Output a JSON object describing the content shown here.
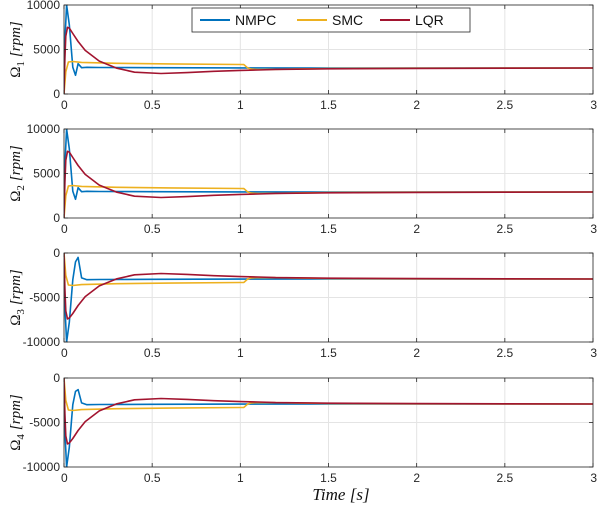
{
  "chart_data": {
    "type": "line",
    "xlabel": "Time [s]",
    "xlim": [
      0,
      3
    ],
    "x_ticks": [
      "0",
      "0.5",
      "1",
      "1.5",
      "2",
      "2.5",
      "3"
    ],
    "grid": true,
    "legend": {
      "placement": "top-center",
      "entries": [
        {
          "name": "NMPC",
          "color": "#0072bd"
        },
        {
          "name": "SMC",
          "color": "#edb120"
        },
        {
          "name": "LQR",
          "color": "#a2142f"
        }
      ]
    },
    "panels": [
      {
        "ylabel_symbol": "Ω",
        "ylabel_sub": "1",
        "ylabel_unit": "[rpm]",
        "ylim": [
          0,
          10000
        ],
        "y_ticks": [
          "0",
          "5000",
          "10000"
        ],
        "series": [
          {
            "name": "NMPC",
            "x": [
              0,
              0.005,
              0.015,
              0.03,
              0.05,
              0.065,
              0.08,
              0.1,
              0.13,
              0.2,
              0.5,
              1.0,
              1.5,
              2.0,
              3.0
            ],
            "y": [
              0,
              6000,
              10000,
              7800,
              3000,
              2100,
              3400,
              2950,
              3000,
              2980,
              2950,
              2930,
              2920,
              2920,
              2920
            ]
          },
          {
            "name": "SMC",
            "x": [
              0,
              0.01,
              0.025,
              0.05,
              0.1,
              0.3,
              0.6,
              1.0,
              1.02,
              1.04,
              1.06,
              1.1,
              1.2,
              1.5,
              2.0,
              3.0
            ],
            "y": [
              0,
              2500,
              3600,
              3650,
              3550,
              3450,
              3380,
              3320,
              3300,
              2950,
              2800,
              2750,
              2780,
              2850,
              2900,
              2920
            ]
          },
          {
            "name": "LQR",
            "x": [
              0,
              0.005,
              0.01,
              0.02,
              0.03,
              0.05,
              0.08,
              0.12,
              0.2,
              0.3,
              0.4,
              0.55,
              0.7,
              0.85,
              1.0,
              1.1,
              1.2,
              1.5,
              2.0,
              2.5,
              3.0
            ],
            "y": [
              0,
              4000,
              6500,
              7500,
              7400,
              6800,
              5900,
              4900,
              3700,
              2900,
              2450,
              2300,
              2400,
              2550,
              2650,
              2700,
              2760,
              2830,
              2880,
              2900,
              2920
            ]
          }
        ]
      },
      {
        "ylabel_symbol": "Ω",
        "ylabel_sub": "2",
        "ylabel_unit": "[rpm]",
        "ylim": [
          0,
          10000
        ],
        "y_ticks": [
          "0",
          "5000",
          "10000"
        ],
        "series": [
          {
            "name": "NMPC",
            "x": [
              0,
              0.005,
              0.015,
              0.03,
              0.05,
              0.065,
              0.08,
              0.1,
              0.13,
              0.2,
              0.5,
              1.0,
              1.5,
              2.0,
              3.0
            ],
            "y": [
              0,
              6000,
              10000,
              7800,
              3000,
              2100,
              3400,
              2950,
              3000,
              2980,
              2950,
              2930,
              2920,
              2920,
              2920
            ]
          },
          {
            "name": "SMC",
            "x": [
              0,
              0.01,
              0.025,
              0.05,
              0.1,
              0.3,
              0.6,
              1.0,
              1.02,
              1.04,
              1.06,
              1.1,
              1.2,
              1.5,
              2.0,
              3.0
            ],
            "y": [
              0,
              2500,
              3600,
              3650,
              3550,
              3450,
              3380,
              3320,
              3300,
              2950,
              2800,
              2750,
              2780,
              2850,
              2900,
              2920
            ]
          },
          {
            "name": "LQR",
            "x": [
              0,
              0.005,
              0.01,
              0.02,
              0.03,
              0.05,
              0.08,
              0.12,
              0.2,
              0.3,
              0.4,
              0.55,
              0.7,
              0.85,
              1.0,
              1.1,
              1.2,
              1.5,
              2.0,
              2.5,
              3.0
            ],
            "y": [
              0,
              4000,
              6500,
              7500,
              7400,
              6800,
              5900,
              4900,
              3700,
              2900,
              2450,
              2300,
              2400,
              2550,
              2650,
              2700,
              2760,
              2830,
              2880,
              2900,
              2920
            ]
          }
        ]
      },
      {
        "ylabel_symbol": "Ω",
        "ylabel_sub": "3",
        "ylabel_unit": "[rpm]",
        "ylim": [
          -10000,
          0
        ],
        "y_ticks": [
          "-10000",
          "-5000",
          "0"
        ],
        "series": [
          {
            "name": "NMPC",
            "x": [
              0,
              0.005,
              0.015,
              0.03,
              0.05,
              0.065,
              0.08,
              0.1,
              0.13,
              0.2,
              0.5,
              1.0,
              1.5,
              2.0,
              3.0
            ],
            "y": [
              0,
              -6000,
              -10000,
              -7800,
              -3000,
              -1000,
              -500,
              -2800,
              -3000,
              -2980,
              -2950,
              -2930,
              -2920,
              -2920,
              -2920
            ]
          },
          {
            "name": "SMC",
            "x": [
              0,
              0.01,
              0.025,
              0.05,
              0.1,
              0.3,
              0.6,
              1.0,
              1.02,
              1.04,
              1.06,
              1.1,
              1.2,
              1.5,
              2.0,
              3.0
            ],
            "y": [
              0,
              -2500,
              -3600,
              -3650,
              -3550,
              -3450,
              -3380,
              -3320,
              -3300,
              -2950,
              -2800,
              -2750,
              -2780,
              -2850,
              -2900,
              -2920
            ]
          },
          {
            "name": "LQR",
            "x": [
              0,
              0.005,
              0.01,
              0.02,
              0.03,
              0.05,
              0.08,
              0.12,
              0.2,
              0.3,
              0.4,
              0.55,
              0.7,
              0.85,
              1.0,
              1.1,
              1.2,
              1.5,
              2.0,
              2.5,
              3.0
            ],
            "y": [
              0,
              -4000,
              -6500,
              -7400,
              -7300,
              -6800,
              -5900,
              -4900,
              -3700,
              -2900,
              -2450,
              -2300,
              -2400,
              -2550,
              -2650,
              -2700,
              -2760,
              -2830,
              -2880,
              -2900,
              -2920
            ]
          }
        ]
      },
      {
        "ylabel_symbol": "Ω",
        "ylabel_sub": "4",
        "ylabel_unit": "[rpm]",
        "ylim": [
          -10000,
          0
        ],
        "y_ticks": [
          "-10000",
          "-5000",
          "0"
        ],
        "series": [
          {
            "name": "NMPC",
            "x": [
              0,
              0.005,
              0.015,
              0.03,
              0.05,
              0.065,
              0.08,
              0.1,
              0.13,
              0.2,
              0.5,
              1.0,
              1.5,
              2.0,
              3.0
            ],
            "y": [
              0,
              -6000,
              -10000,
              -7800,
              -3000,
              -1500,
              -1300,
              -2800,
              -3000,
              -2980,
              -2950,
              -2930,
              -2920,
              -2920,
              -2920
            ]
          },
          {
            "name": "SMC",
            "x": [
              0,
              0.01,
              0.025,
              0.05,
              0.1,
              0.3,
              0.6,
              1.0,
              1.02,
              1.04,
              1.06,
              1.1,
              1.2,
              1.5,
              2.0,
              3.0
            ],
            "y": [
              0,
              -2500,
              -3600,
              -3650,
              -3550,
              -3450,
              -3380,
              -3320,
              -3300,
              -2950,
              -2800,
              -2750,
              -2780,
              -2850,
              -2900,
              -2920
            ]
          },
          {
            "name": "LQR",
            "x": [
              0,
              0.005,
              0.01,
              0.02,
              0.03,
              0.05,
              0.08,
              0.12,
              0.2,
              0.3,
              0.4,
              0.55,
              0.7,
              0.85,
              1.0,
              1.1,
              1.2,
              1.5,
              2.0,
              2.5,
              3.0
            ],
            "y": [
              0,
              -4000,
              -6500,
              -7400,
              -7300,
              -6800,
              -5900,
              -4900,
              -3700,
              -2900,
              -2450,
              -2300,
              -2400,
              -2550,
              -2650,
              -2700,
              -2760,
              -2830,
              -2880,
              -2900,
              -2920
            ]
          }
        ]
      }
    ]
  }
}
